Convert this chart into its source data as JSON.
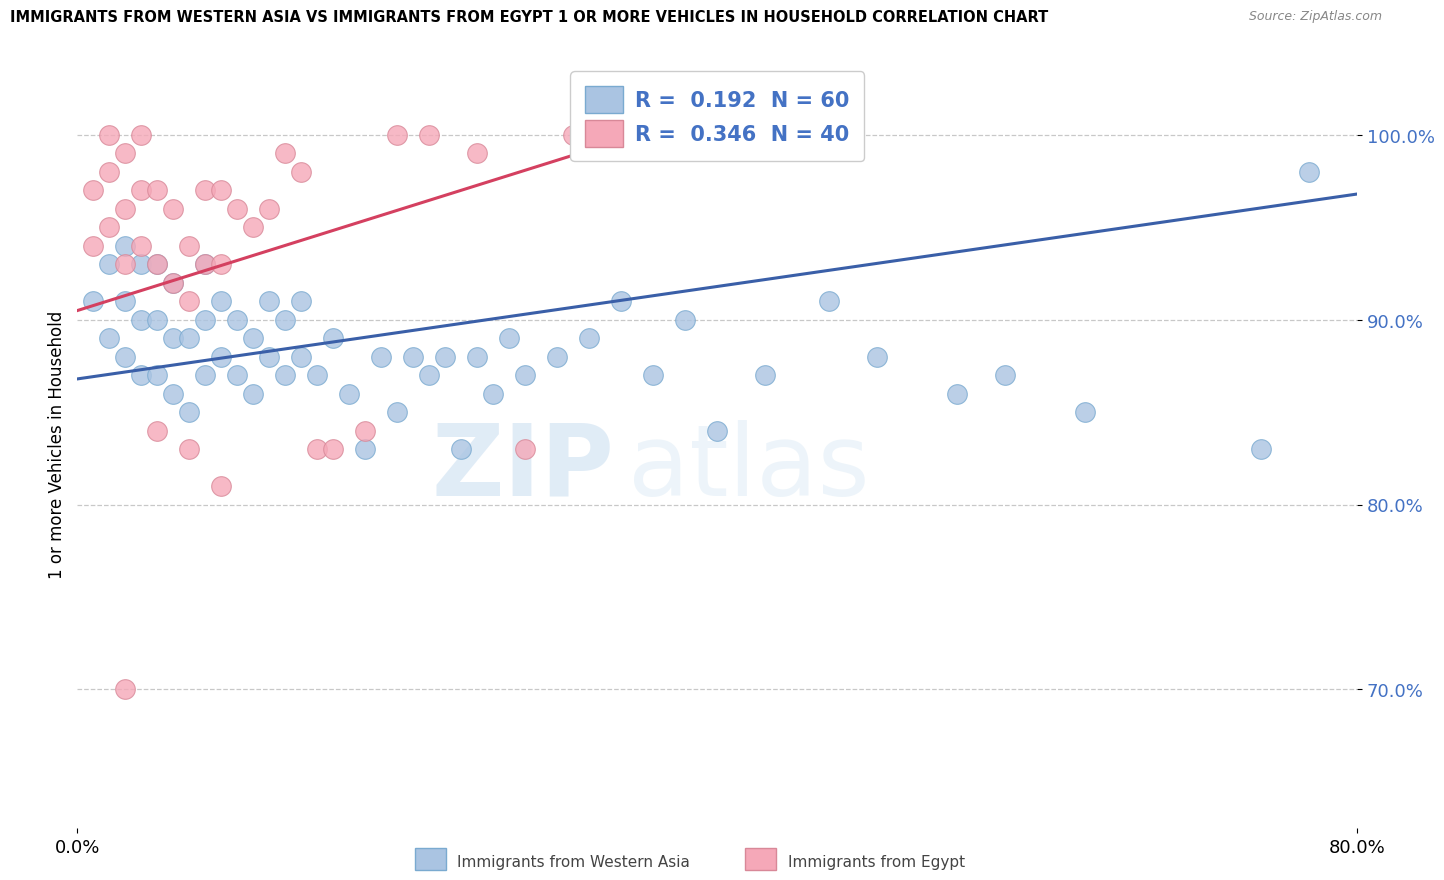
{
  "title": "IMMIGRANTS FROM WESTERN ASIA VS IMMIGRANTS FROM EGYPT 1 OR MORE VEHICLES IN HOUSEHOLD CORRELATION CHART",
  "source": "Source: ZipAtlas.com",
  "ylabel": "1 or more Vehicles in Household",
  "y_tick_labels": [
    "70.0%",
    "80.0%",
    "90.0%",
    "100.0%"
  ],
  "y_tick_values": [
    0.7,
    0.8,
    0.9,
    1.0
  ],
  "x_range": [
    0.0,
    0.8
  ],
  "y_range": [
    0.625,
    1.04
  ],
  "legend_r1": "R =  0.192",
  "legend_n1": "N = 60",
  "legend_r2": "R =  0.346",
  "legend_n2": "N = 40",
  "legend_label1": "Immigrants from Western Asia",
  "legend_label2": "Immigrants from Egypt",
  "blue_color": "#aac4e2",
  "pink_color": "#f5a8b8",
  "line_blue": "#3a5fa8",
  "line_pink": "#d44060",
  "text_blue": "#4472c4",
  "watermark_zip": "ZIP",
  "watermark_atlas": "atlas",
  "blue_scatter_x": [
    0.01,
    0.02,
    0.02,
    0.03,
    0.03,
    0.03,
    0.04,
    0.04,
    0.04,
    0.05,
    0.05,
    0.05,
    0.06,
    0.06,
    0.06,
    0.07,
    0.07,
    0.08,
    0.08,
    0.08,
    0.09,
    0.09,
    0.1,
    0.1,
    0.11,
    0.11,
    0.12,
    0.12,
    0.13,
    0.13,
    0.14,
    0.14,
    0.15,
    0.16,
    0.17,
    0.18,
    0.19,
    0.2,
    0.21,
    0.22,
    0.23,
    0.24,
    0.25,
    0.26,
    0.27,
    0.28,
    0.3,
    0.32,
    0.34,
    0.36,
    0.38,
    0.4,
    0.43,
    0.47,
    0.5,
    0.55,
    0.58,
    0.63,
    0.74,
    0.77
  ],
  "blue_scatter_y": [
    0.91,
    0.89,
    0.93,
    0.88,
    0.91,
    0.94,
    0.87,
    0.9,
    0.93,
    0.87,
    0.9,
    0.93,
    0.86,
    0.89,
    0.92,
    0.85,
    0.89,
    0.87,
    0.9,
    0.93,
    0.88,
    0.91,
    0.87,
    0.9,
    0.86,
    0.89,
    0.88,
    0.91,
    0.87,
    0.9,
    0.88,
    0.91,
    0.87,
    0.89,
    0.86,
    0.83,
    0.88,
    0.85,
    0.88,
    0.87,
    0.88,
    0.83,
    0.88,
    0.86,
    0.89,
    0.87,
    0.88,
    0.89,
    0.91,
    0.87,
    0.9,
    0.84,
    0.87,
    0.91,
    0.88,
    0.86,
    0.87,
    0.85,
    0.83,
    0.98
  ],
  "pink_scatter_x": [
    0.01,
    0.01,
    0.02,
    0.02,
    0.02,
    0.03,
    0.03,
    0.03,
    0.04,
    0.04,
    0.04,
    0.05,
    0.05,
    0.06,
    0.06,
    0.07,
    0.07,
    0.08,
    0.08,
    0.09,
    0.09,
    0.1,
    0.11,
    0.12,
    0.13,
    0.14,
    0.15,
    0.16,
    0.18,
    0.2,
    0.22,
    0.25,
    0.28,
    0.31,
    0.35,
    0.38,
    0.03,
    0.05,
    0.07,
    0.09
  ],
  "pink_scatter_y": [
    0.94,
    0.97,
    0.95,
    0.98,
    1.0,
    0.93,
    0.96,
    0.99,
    0.94,
    0.97,
    1.0,
    0.93,
    0.97,
    0.92,
    0.96,
    0.91,
    0.94,
    0.93,
    0.97,
    0.93,
    0.97,
    0.96,
    0.95,
    0.96,
    0.99,
    0.98,
    0.83,
    0.83,
    0.84,
    1.0,
    1.0,
    0.99,
    0.83,
    1.0,
    1.0,
    1.0,
    0.7,
    0.84,
    0.83,
    0.81
  ],
  "blue_trend_x": [
    0.0,
    0.8
  ],
  "blue_trend_y": [
    0.868,
    0.968
  ],
  "pink_trend_x": [
    0.0,
    0.38
  ],
  "pink_trend_y": [
    0.905,
    1.008
  ]
}
